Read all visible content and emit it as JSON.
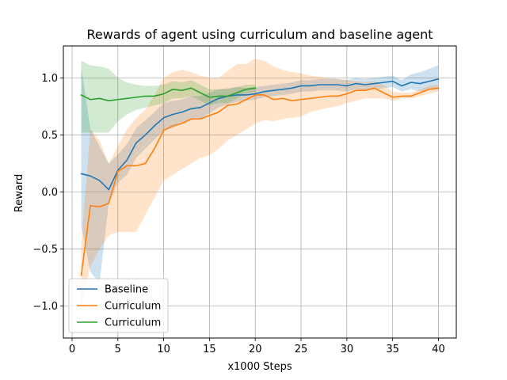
{
  "chart_data": {
    "type": "line",
    "title": "Rewards of agent using curriculum and baseline agent",
    "xlabel": "x1000 Steps",
    "ylabel": "Reward",
    "xlim": [
      -0.95,
      41.95
    ],
    "ylim": [
      -1.28,
      1.28
    ],
    "xticks": [
      0,
      5,
      10,
      15,
      20,
      25,
      30,
      35,
      40
    ],
    "yticks": [
      -1.0,
      -0.5,
      0.0,
      0.5,
      1.0
    ],
    "xtick_labels": [
      "0",
      "5",
      "10",
      "15",
      "20",
      "25",
      "30",
      "35",
      "40"
    ],
    "ytick_labels": [
      "−1.0",
      "−0.5",
      "0.0",
      "0.5",
      "1.0"
    ],
    "grid": true,
    "legend_position": "lower-left",
    "legend": [
      "Baseline",
      "Curriculum",
      "Curriculum"
    ],
    "series": [
      {
        "name": "Baseline",
        "color": "#1f77b4",
        "x": [
          1,
          2,
          3,
          4,
          5,
          6,
          7,
          8,
          9,
          10,
          11,
          12,
          13,
          14,
          15,
          16,
          17,
          18,
          19,
          20,
          21,
          22,
          23,
          24,
          25,
          26,
          27,
          28,
          29,
          30,
          31,
          32,
          33,
          34,
          35,
          36,
          37,
          38,
          39,
          40
        ],
        "y": [
          0.16,
          0.14,
          0.1,
          0.02,
          0.19,
          0.28,
          0.43,
          0.5,
          0.58,
          0.65,
          0.68,
          0.7,
          0.73,
          0.74,
          0.78,
          0.82,
          0.84,
          0.85,
          0.85,
          0.86,
          0.88,
          0.89,
          0.9,
          0.91,
          0.93,
          0.93,
          0.94,
          0.94,
          0.94,
          0.93,
          0.95,
          0.94,
          0.95,
          0.96,
          0.97,
          0.93,
          0.96,
          0.95,
          0.97,
          0.99
        ],
        "lower": [
          -0.3,
          -0.7,
          -0.8,
          -0.1,
          0.08,
          0.15,
          0.3,
          0.38,
          0.46,
          0.54,
          0.56,
          0.6,
          0.63,
          0.64,
          0.69,
          0.74,
          0.77,
          0.79,
          0.8,
          0.81,
          0.83,
          0.84,
          0.85,
          0.86,
          0.88,
          0.88,
          0.89,
          0.89,
          0.89,
          0.88,
          0.9,
          0.89,
          0.9,
          0.91,
          0.92,
          0.88,
          0.9,
          0.88,
          0.9,
          0.9
        ],
        "upper": [
          1.1,
          0.55,
          0.4,
          0.25,
          0.33,
          0.42,
          0.56,
          0.63,
          0.7,
          0.78,
          0.8,
          0.81,
          0.84,
          0.84,
          0.87,
          0.9,
          0.91,
          0.92,
          0.91,
          0.92,
          0.93,
          0.94,
          0.95,
          0.96,
          0.98,
          0.98,
          0.99,
          0.99,
          0.99,
          0.98,
          1.0,
          0.99,
          1.0,
          1.01,
          1.02,
          0.98,
          1.03,
          1.05,
          1.08,
          1.11
        ]
      },
      {
        "name": "Curriculum",
        "color": "#ff7f0e",
        "x": [
          1,
          2,
          3,
          4,
          5,
          6,
          7,
          8,
          9,
          10,
          11,
          12,
          13,
          14,
          15,
          16,
          17,
          18,
          19,
          20,
          21,
          22,
          23,
          24,
          25,
          26,
          27,
          28,
          29,
          30,
          31,
          32,
          33,
          34,
          35,
          36,
          37,
          38,
          39,
          40
        ],
        "y": [
          -0.73,
          -0.12,
          -0.13,
          -0.1,
          0.18,
          0.23,
          0.23,
          0.25,
          0.38,
          0.54,
          0.58,
          0.6,
          0.64,
          0.64,
          0.67,
          0.7,
          0.76,
          0.77,
          0.81,
          0.85,
          0.85,
          0.81,
          0.82,
          0.8,
          0.81,
          0.82,
          0.83,
          0.84,
          0.84,
          0.86,
          0.89,
          0.89,
          0.91,
          0.87,
          0.83,
          0.84,
          0.84,
          0.87,
          0.9,
          0.91
        ],
        "lower": [
          -1.0,
          -0.65,
          -0.5,
          -0.38,
          -0.35,
          -0.35,
          -0.35,
          -0.2,
          -0.05,
          0.1,
          0.15,
          0.2,
          0.25,
          0.3,
          0.32,
          0.38,
          0.45,
          0.5,
          0.55,
          0.6,
          0.63,
          0.62,
          0.64,
          0.65,
          0.66,
          0.7,
          0.72,
          0.74,
          0.75,
          0.78,
          0.8,
          0.82,
          0.82,
          0.82,
          0.8,
          0.82,
          0.82,
          0.84,
          0.86,
          0.88
        ],
        "upper": [
          -0.45,
          0.55,
          0.45,
          0.25,
          0.4,
          0.55,
          0.65,
          0.72,
          0.85,
          1.0,
          1.05,
          1.07,
          1.05,
          1.02,
          1.0,
          1.0,
          1.06,
          1.12,
          1.12,
          1.17,
          1.15,
          1.1,
          1.07,
          1.05,
          1.04,
          1.02,
          1.01,
          1.0,
          0.99,
          0.98,
          0.97,
          0.96,
          0.97,
          0.94,
          0.88,
          0.87,
          0.87,
          0.9,
          0.93,
          0.94
        ]
      },
      {
        "name": "Curriculum",
        "color": "#2ca02c",
        "x": [
          1,
          2,
          3,
          4,
          5,
          6,
          7,
          8,
          9,
          10,
          11,
          12,
          13,
          14,
          15,
          16,
          17,
          18,
          19,
          20
        ],
        "y": [
          0.85,
          0.81,
          0.82,
          0.8,
          0.81,
          0.82,
          0.83,
          0.84,
          0.84,
          0.86,
          0.9,
          0.89,
          0.91,
          0.87,
          0.83,
          0.84,
          0.84,
          0.87,
          0.9,
          0.91
        ],
        "lower": [
          0.52,
          0.52,
          0.52,
          0.52,
          0.62,
          0.68,
          0.72,
          0.74,
          0.76,
          0.78,
          0.82,
          0.82,
          0.84,
          0.8,
          0.76,
          0.78,
          0.78,
          0.82,
          0.86,
          0.88
        ],
        "upper": [
          1.15,
          1.11,
          1.1,
          1.08,
          1.0,
          0.96,
          0.94,
          0.93,
          0.93,
          0.94,
          0.97,
          0.96,
          0.98,
          0.94,
          0.9,
          0.9,
          0.9,
          0.92,
          0.94,
          0.94
        ]
      }
    ]
  }
}
